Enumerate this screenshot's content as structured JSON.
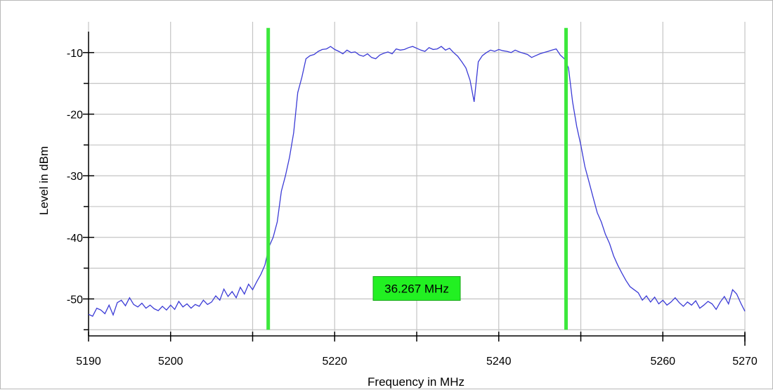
{
  "chart_data": {
    "type": "line",
    "xlabel": "Frequency in MHz",
    "ylabel": "Level in dBm",
    "xlim": [
      5190,
      5270
    ],
    "ylim": [
      -56,
      -5
    ],
    "x_tick_labels": [
      "5190",
      "5200",
      "5220",
      "5240",
      "5260",
      "5270"
    ],
    "x_tick_values": [
      5190,
      5200,
      5220,
      5240,
      5260,
      5270
    ],
    "x_grid_values": [
      5190,
      5200,
      5210,
      5220,
      5230,
      5240,
      5250,
      5260,
      5270
    ],
    "y_tick_labels": [
      "-10",
      "-20",
      "-30",
      "-40",
      "-50"
    ],
    "y_tick_values": [
      -10,
      -20,
      -30,
      -40,
      -50
    ],
    "y_minor_values": [
      -15,
      -25,
      -35,
      -45,
      -55
    ],
    "grid": true,
    "colors": {
      "trace": "#3b3bd6",
      "markers": "#3ce83c",
      "grid": "#c4c4c4",
      "label_box": "#22f022"
    },
    "markers": [
      {
        "x": 5211.9,
        "y_top": -6,
        "y_bottom": -55
      },
      {
        "x": 5248.2,
        "y_top": -6,
        "y_bottom": -55
      }
    ],
    "bandwidth_label": "36.267 MHz",
    "bandwidth_label_pos": {
      "x": 5230,
      "y": -48.3
    },
    "series": [
      {
        "points": [
          [
            5190,
            -52.5
          ],
          [
            5190.5,
            -52.8
          ],
          [
            5191,
            -51.5
          ],
          [
            5191.5,
            -51.8
          ],
          [
            5192,
            -52.4
          ],
          [
            5192.5,
            -51.0
          ],
          [
            5193,
            -52.6
          ],
          [
            5193.5,
            -50.6
          ],
          [
            5194,
            -50.2
          ],
          [
            5194.5,
            -51.1
          ],
          [
            5195,
            -49.8
          ],
          [
            5195.5,
            -50.9
          ],
          [
            5196,
            -51.3
          ],
          [
            5196.5,
            -50.7
          ],
          [
            5197,
            -51.5
          ],
          [
            5197.5,
            -51.0
          ],
          [
            5198,
            -51.6
          ],
          [
            5198.5,
            -51.9
          ],
          [
            5199,
            -51.2
          ],
          [
            5199.5,
            -51.8
          ],
          [
            5200,
            -51.0
          ],
          [
            5200.5,
            -51.7
          ],
          [
            5201,
            -50.4
          ],
          [
            5201.5,
            -51.3
          ],
          [
            5202,
            -50.8
          ],
          [
            5202.5,
            -51.5
          ],
          [
            5203,
            -50.9
          ],
          [
            5203.5,
            -51.2
          ],
          [
            5204,
            -50.2
          ],
          [
            5204.5,
            -50.9
          ],
          [
            5205,
            -50.5
          ],
          [
            5205.5,
            -49.5
          ],
          [
            5206,
            -50.2
          ],
          [
            5206.5,
            -48.4
          ],
          [
            5207,
            -49.6
          ],
          [
            5207.5,
            -48.8
          ],
          [
            5208,
            -49.8
          ],
          [
            5208.5,
            -48.1
          ],
          [
            5209,
            -49.2
          ],
          [
            5209.5,
            -47.6
          ],
          [
            5210,
            -48.5
          ],
          [
            5210.5,
            -47.2
          ],
          [
            5211,
            -46.0
          ],
          [
            5211.5,
            -44.5
          ],
          [
            5212,
            -41.5
          ],
          [
            5212.5,
            -40.0
          ],
          [
            5213,
            -37.5
          ],
          [
            5213.5,
            -32.5
          ],
          [
            5214,
            -30.0
          ],
          [
            5214.5,
            -27.0
          ],
          [
            5215,
            -23.0
          ],
          [
            5215.5,
            -16.5
          ],
          [
            5216,
            -14.0
          ],
          [
            5216.5,
            -11.0
          ],
          [
            5217,
            -10.5
          ],
          [
            5217.5,
            -10.3
          ],
          [
            5218,
            -9.8
          ],
          [
            5218.5,
            -9.5
          ],
          [
            5219,
            -9.4
          ],
          [
            5219.5,
            -9.0
          ],
          [
            5220,
            -9.5
          ],
          [
            5220.5,
            -9.8
          ],
          [
            5221,
            -10.2
          ],
          [
            5221.5,
            -9.6
          ],
          [
            5222,
            -10.0
          ],
          [
            5222.5,
            -9.9
          ],
          [
            5223,
            -10.4
          ],
          [
            5223.5,
            -10.6
          ],
          [
            5224,
            -10.2
          ],
          [
            5224.5,
            -10.8
          ],
          [
            5225,
            -11.0
          ],
          [
            5225.5,
            -10.4
          ],
          [
            5226,
            -10.1
          ],
          [
            5226.5,
            -9.9
          ],
          [
            5227,
            -10.2
          ],
          [
            5227.5,
            -9.4
          ],
          [
            5228,
            -9.6
          ],
          [
            5228.5,
            -9.5
          ],
          [
            5229,
            -9.2
          ],
          [
            5229.5,
            -9.0
          ],
          [
            5230,
            -9.3
          ],
          [
            5230.5,
            -9.6
          ],
          [
            5231,
            -9.8
          ],
          [
            5231.5,
            -9.2
          ],
          [
            5232,
            -9.5
          ],
          [
            5232.5,
            -9.4
          ],
          [
            5233,
            -9.0
          ],
          [
            5233.5,
            -9.6
          ],
          [
            5234,
            -9.3
          ],
          [
            5234.5,
            -10.0
          ],
          [
            5235,
            -10.6
          ],
          [
            5235.5,
            -11.5
          ],
          [
            5236,
            -12.5
          ],
          [
            5236.5,
            -14.5
          ],
          [
            5237,
            -18.0
          ],
          [
            5237.5,
            -11.5
          ],
          [
            5238,
            -10.5
          ],
          [
            5238.5,
            -10.0
          ],
          [
            5239,
            -9.6
          ],
          [
            5239.5,
            -9.8
          ],
          [
            5240,
            -9.5
          ],
          [
            5240.5,
            -9.7
          ],
          [
            5241,
            -9.8
          ],
          [
            5241.5,
            -10.0
          ],
          [
            5242,
            -9.6
          ],
          [
            5242.5,
            -9.9
          ],
          [
            5243,
            -10.1
          ],
          [
            5243.5,
            -10.3
          ],
          [
            5244,
            -10.8
          ],
          [
            5244.5,
            -10.5
          ],
          [
            5245,
            -10.2
          ],
          [
            5245.5,
            -10.0
          ],
          [
            5246,
            -9.8
          ],
          [
            5246.5,
            -9.6
          ],
          [
            5247,
            -9.4
          ],
          [
            5247.5,
            -10.4
          ],
          [
            5248,
            -11.0
          ],
          [
            5248.5,
            -12.5
          ],
          [
            5249,
            -18.0
          ],
          [
            5249.5,
            -22.0
          ],
          [
            5250,
            -25.0
          ],
          [
            5250.5,
            -28.5
          ],
          [
            5251,
            -31.0
          ],
          [
            5251.5,
            -33.5
          ],
          [
            5252,
            -36.0
          ],
          [
            5252.5,
            -37.5
          ],
          [
            5253,
            -39.5
          ],
          [
            5253.5,
            -41.0
          ],
          [
            5254,
            -43.0
          ],
          [
            5254.5,
            -44.5
          ],
          [
            5255,
            -45.8
          ],
          [
            5255.5,
            -47.0
          ],
          [
            5256,
            -48.0
          ],
          [
            5256.5,
            -48.5
          ],
          [
            5257,
            -49.0
          ],
          [
            5257.5,
            -50.2
          ],
          [
            5258,
            -49.5
          ],
          [
            5258.5,
            -50.5
          ],
          [
            5259,
            -49.7
          ],
          [
            5259.5,
            -50.8
          ],
          [
            5260,
            -50.2
          ],
          [
            5260.5,
            -51.0
          ],
          [
            5261,
            -50.5
          ],
          [
            5261.5,
            -49.8
          ],
          [
            5262,
            -50.6
          ],
          [
            5262.5,
            -51.2
          ],
          [
            5263,
            -50.5
          ],
          [
            5263.5,
            -51.0
          ],
          [
            5264,
            -50.3
          ],
          [
            5264.5,
            -51.5
          ],
          [
            5265,
            -51.0
          ],
          [
            5265.5,
            -50.4
          ],
          [
            5266,
            -50.8
          ],
          [
            5266.5,
            -51.7
          ],
          [
            5267,
            -50.5
          ],
          [
            5267.5,
            -49.6
          ],
          [
            5268,
            -50.8
          ],
          [
            5268.5,
            -48.5
          ],
          [
            5269,
            -49.2
          ],
          [
            5269.5,
            -50.7
          ],
          [
            5270,
            -52.0
          ]
        ]
      }
    ]
  }
}
